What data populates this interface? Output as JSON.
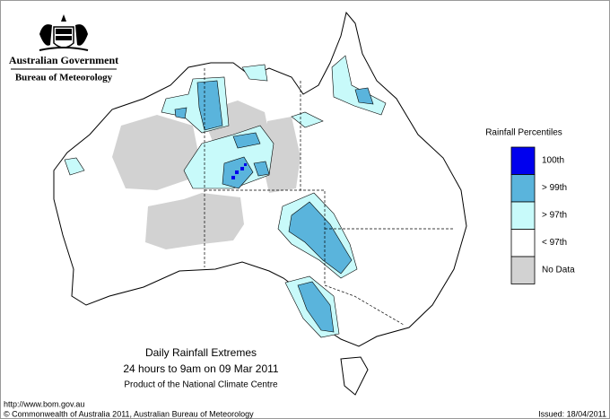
{
  "header": {
    "agency": "Australian Government",
    "bureau": "Bureau of Meteorology"
  },
  "legend": {
    "title": "Rainfall Percentiles",
    "items": [
      {
        "label": "100th",
        "color": "#0000ee"
      },
      {
        "label": "> 99th",
        "color": "#5ab4dc"
      },
      {
        "label": "> 97th",
        "color": "#c8fafa"
      },
      {
        "label": "< 97th",
        "color": "#ffffff"
      },
      {
        "label": "No Data",
        "color": "#d2d2d2"
      }
    ]
  },
  "caption": {
    "title": "Daily Rainfall Extremes",
    "period": "24 hours to 9am on 09 Mar 2011",
    "product": "Product of the National Climate Centre"
  },
  "footer": {
    "url": "http://www.bom.gov.au",
    "copyright": "© Commonwealth of Australia 2011, Australian Bureau of Meteorology",
    "issued": "Issued: 18/04/2011"
  }
}
